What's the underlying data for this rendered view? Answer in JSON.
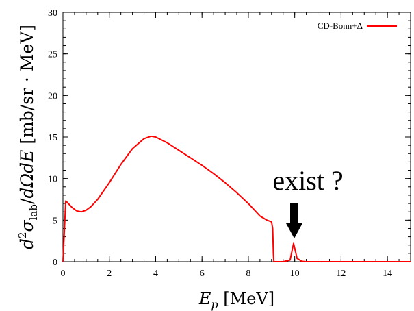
{
  "chart_data": {
    "type": "line",
    "xlim": [
      0,
      15
    ],
    "ylim": [
      0,
      30
    ],
    "xticks": [
      0,
      2,
      4,
      6,
      8,
      10,
      12,
      14
    ],
    "yticks": [
      0,
      5,
      10,
      15,
      20,
      25,
      30
    ],
    "xticks_minor_step": 0.5,
    "yticks_minor_step": 1,
    "xlabel": "E_p [MeV]",
    "ylabel": "d²σ_lab/dΩdE [mb/sr · MeV]",
    "grid": false,
    "legend_position": "top-right",
    "series": [
      {
        "name": "CD-Bonn+Δ",
        "color": "#ff0000",
        "x": [
          0,
          0.12,
          0.2,
          0.4,
          0.6,
          0.8,
          1.0,
          1.2,
          1.5,
          2.0,
          2.5,
          3.0,
          3.5,
          3.8,
          4.0,
          4.5,
          5.0,
          5.5,
          6.0,
          6.5,
          7.0,
          7.5,
          8.0,
          8.5,
          8.8,
          9.0,
          9.05,
          9.08,
          9.1,
          9.5,
          9.8,
          9.95,
          10.1,
          10.3,
          10.5,
          15
        ],
        "y": [
          0,
          7.3,
          7.1,
          6.5,
          6.1,
          6.0,
          6.2,
          6.6,
          7.5,
          9.5,
          11.7,
          13.6,
          14.8,
          15.1,
          15.0,
          14.3,
          13.4,
          12.5,
          11.6,
          10.6,
          9.5,
          8.3,
          7.0,
          5.5,
          5.0,
          4.8,
          4.0,
          1.0,
          0,
          0,
          0.2,
          2.2,
          0.4,
          0.05,
          0,
          0
        ]
      }
    ],
    "annotations": [
      {
        "text": "exist ?",
        "x": 9.9,
        "y": 9.5
      },
      {
        "arrow": "down",
        "target_x": 9.95,
        "target_y": 2.8
      }
    ]
  },
  "labels": {
    "xlabel_main": "E",
    "xlabel_sub": "p",
    "xlabel_unit": " [MeV]",
    "legend_name": "CD-Bonn+Δ",
    "annotation_text": "exist ?"
  }
}
